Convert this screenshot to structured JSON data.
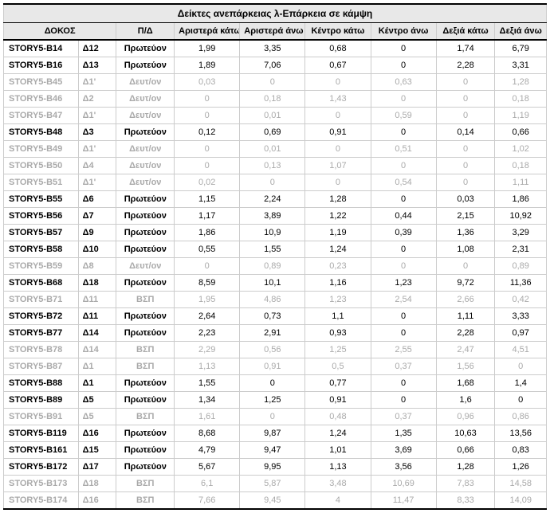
{
  "title": "Δείκτες ανεπάρκειας λ-Επάρκεια σε κάμψη",
  "headers": {
    "dokos": "ΔΟΚΟΣ",
    "pd": "Π/Δ",
    "c1": "Αριστερά κάτω",
    "c2": "Αριστερά άνω",
    "c3": "Κέντρο κάτω",
    "c4": "Κέντρο άνω",
    "c5": "Δεξιά κάτω",
    "c6": "Δεξιά άνω"
  },
  "rows": [
    {
      "dim": false,
      "name": "STORY5-B14",
      "code": "Δ12",
      "pd": "Πρωτεύον",
      "v": [
        "1,99",
        "3,35",
        "0,68",
        "0",
        "1,74",
        "6,79"
      ]
    },
    {
      "dim": false,
      "name": "STORY5-B16",
      "code": "Δ13",
      "pd": "Πρωτεύον",
      "v": [
        "1,89",
        "7,06",
        "0,67",
        "0",
        "2,28",
        "3,31"
      ]
    },
    {
      "dim": true,
      "name": "STORY5-B45",
      "code": "Δ1'",
      "pd": "Δευτ/ον",
      "v": [
        "0,03",
        "0",
        "0",
        "0,63",
        "0",
        "1,28"
      ]
    },
    {
      "dim": true,
      "name": "STORY5-B46",
      "code": "Δ2",
      "pd": "Δευτ/ον",
      "v": [
        "0",
        "0,18",
        "1,43",
        "0",
        "0",
        "0,18"
      ]
    },
    {
      "dim": true,
      "name": "STORY5-B47",
      "code": "Δ1'",
      "pd": "Δευτ/ον",
      "v": [
        "0",
        "0,01",
        "0",
        "0,59",
        "0",
        "1,19"
      ]
    },
    {
      "dim": false,
      "name": "STORY5-B48",
      "code": "Δ3",
      "pd": "Πρωτεύον",
      "v": [
        "0,12",
        "0,69",
        "0,91",
        "0",
        "0,14",
        "0,66"
      ]
    },
    {
      "dim": true,
      "name": "STORY5-B49",
      "code": "Δ1'",
      "pd": "Δευτ/ον",
      "v": [
        "0",
        "0,01",
        "0",
        "0,51",
        "0",
        "1,02"
      ]
    },
    {
      "dim": true,
      "name": "STORY5-B50",
      "code": "Δ4",
      "pd": "Δευτ/ον",
      "v": [
        "0",
        "0,13",
        "1,07",
        "0",
        "0",
        "0,18"
      ]
    },
    {
      "dim": true,
      "name": "STORY5-B51",
      "code": "Δ1'",
      "pd": "Δευτ/ον",
      "v": [
        "0,02",
        "0",
        "0",
        "0,54",
        "0",
        "1,11"
      ]
    },
    {
      "dim": false,
      "name": "STORY5-B55",
      "code": "Δ6",
      "pd": "Πρωτεύον",
      "v": [
        "1,15",
        "2,24",
        "1,28",
        "0",
        "0,03",
        "1,86"
      ]
    },
    {
      "dim": false,
      "name": "STORY5-B56",
      "code": "Δ7",
      "pd": "Πρωτεύον",
      "v": [
        "1,17",
        "3,89",
        "1,22",
        "0,44",
        "2,15",
        "10,92"
      ]
    },
    {
      "dim": false,
      "name": "STORY5-B57",
      "code": "Δ9",
      "pd": "Πρωτεύον",
      "v": [
        "1,86",
        "10,9",
        "1,19",
        "0,39",
        "1,36",
        "3,29"
      ]
    },
    {
      "dim": false,
      "name": "STORY5-B58",
      "code": "Δ10",
      "pd": "Πρωτεύον",
      "v": [
        "0,55",
        "1,55",
        "1,24",
        "0",
        "1,08",
        "2,31"
      ]
    },
    {
      "dim": true,
      "name": "STORY5-B59",
      "code": "Δ8",
      "pd": "Δευτ/ον",
      "v": [
        "0",
        "0,89",
        "0,23",
        "0",
        "0",
        "0,89"
      ]
    },
    {
      "dim": false,
      "name": "STORY5-B68",
      "code": "Δ18",
      "pd": "Πρωτεύον",
      "v": [
        "8,59",
        "10,1",
        "1,16",
        "1,23",
        "9,72",
        "11,36"
      ]
    },
    {
      "dim": true,
      "name": "STORY5-B71",
      "code": "Δ11",
      "pd": "ΒΣΠ",
      "v": [
        "1,95",
        "4,86",
        "1,23",
        "2,54",
        "2,66",
        "0,42"
      ]
    },
    {
      "dim": false,
      "name": "STORY5-B72",
      "code": "Δ11",
      "pd": "Πρωτεύον",
      "v": [
        "2,64",
        "0,73",
        "1,1",
        "0",
        "1,11",
        "3,33"
      ]
    },
    {
      "dim": false,
      "name": "STORY5-B77",
      "code": "Δ14",
      "pd": "Πρωτεύον",
      "v": [
        "2,23",
        "2,91",
        "0,93",
        "0",
        "2,28",
        "0,97"
      ]
    },
    {
      "dim": true,
      "name": "STORY5-B78",
      "code": "Δ14",
      "pd": "ΒΣΠ",
      "v": [
        "2,29",
        "0,56",
        "1,25",
        "2,55",
        "2,47",
        "4,51"
      ]
    },
    {
      "dim": true,
      "name": "STORY5-B87",
      "code": "Δ1",
      "pd": "ΒΣΠ",
      "v": [
        "1,13",
        "0,91",
        "0,5",
        "0,37",
        "1,56",
        "0"
      ]
    },
    {
      "dim": false,
      "name": "STORY5-B88",
      "code": "Δ1",
      "pd": "Πρωτεύον",
      "v": [
        "1,55",
        "0",
        "0,77",
        "0",
        "1,68",
        "1,4"
      ]
    },
    {
      "dim": false,
      "name": "STORY5-B89",
      "code": "Δ5",
      "pd": "Πρωτεύον",
      "v": [
        "1,34",
        "1,25",
        "0,91",
        "0",
        "1,6",
        "0"
      ]
    },
    {
      "dim": true,
      "name": "STORY5-B91",
      "code": "Δ5",
      "pd": "ΒΣΠ",
      "v": [
        "1,61",
        "0",
        "0,48",
        "0,37",
        "0,96",
        "0,86"
      ]
    },
    {
      "dim": false,
      "name": "STORY5-B119",
      "code": "Δ16",
      "pd": "Πρωτεύον",
      "v": [
        "8,68",
        "9,87",
        "1,24",
        "1,35",
        "10,63",
        "13,56"
      ]
    },
    {
      "dim": false,
      "name": "STORY5-B161",
      "code": "Δ15",
      "pd": "Πρωτεύον",
      "v": [
        "4,79",
        "9,47",
        "1,01",
        "3,69",
        "0,66",
        "0,83"
      ]
    },
    {
      "dim": false,
      "name": "STORY5-B172",
      "code": "Δ17",
      "pd": "Πρωτεύον",
      "v": [
        "5,67",
        "9,95",
        "1,13",
        "3,56",
        "1,28",
        "1,26"
      ]
    },
    {
      "dim": true,
      "name": "STORY5-B173",
      "code": "Δ18",
      "pd": "ΒΣΠ",
      "v": [
        "6,1",
        "5,87",
        "3,48",
        "10,69",
        "7,83",
        "14,58"
      ]
    },
    {
      "dim": true,
      "name": "STORY5-B174",
      "code": "Δ16",
      "pd": "ΒΣΠ",
      "v": [
        "7,66",
        "9,45",
        "4",
        "11,47",
        "8,33",
        "14,09"
      ]
    }
  ]
}
